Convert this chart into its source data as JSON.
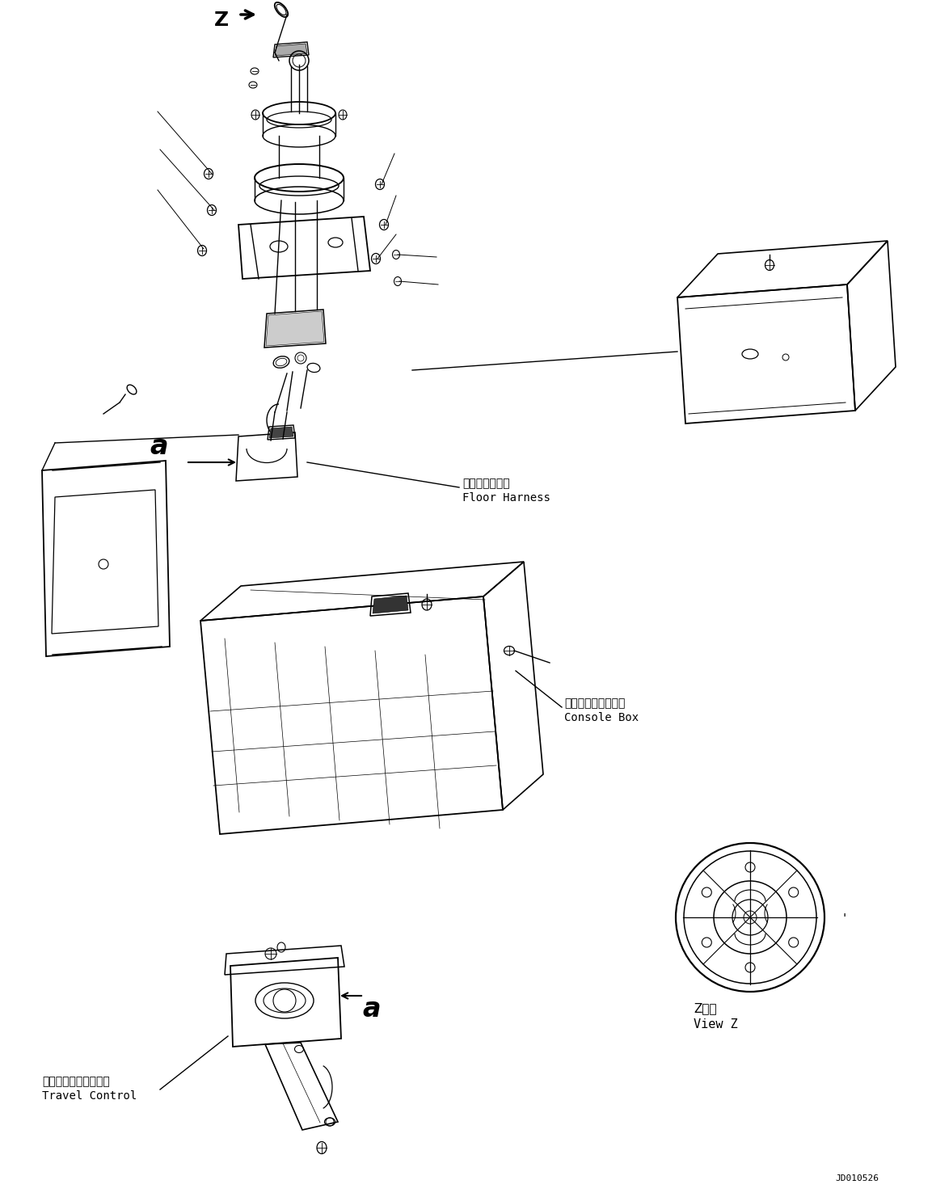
{
  "title": "",
  "background_color": "#ffffff",
  "figure_width": 11.53,
  "figure_height": 14.81,
  "dpi": 100,
  "part_id": "JD010526",
  "labels": {
    "floor_harness_jp": "フロアハーネス",
    "floor_harness_en": "Floor Harness",
    "console_box_jp": "コンソールボックス",
    "console_box_en": "Console Box",
    "travel_control_jp": "トラベルコントロール",
    "travel_control_en": "Travel Control",
    "view_z_jp": "Z　視",
    "view_z_en": "View Z",
    "label_a1": "a",
    "label_a2": "a",
    "label_z": "Z"
  },
  "colors": {
    "line": "#000000",
    "bg": "#ffffff",
    "text": "#000000"
  }
}
